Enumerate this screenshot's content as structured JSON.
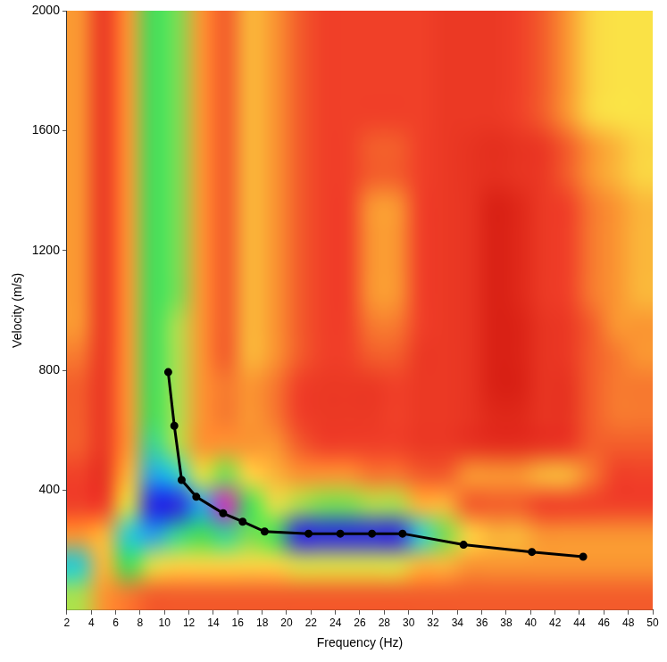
{
  "chart_data": {
    "type": "heatmap",
    "x_label": "Frequency (Hz)",
    "y_label": "Velocity (m/s)",
    "xlim": [
      2,
      50
    ],
    "xticks": [
      2,
      4,
      6,
      8,
      10,
      12,
      14,
      16,
      18,
      20,
      22,
      24,
      26,
      28,
      30,
      32,
      34,
      36,
      38,
      40,
      42,
      44,
      46,
      48,
      50
    ],
    "ylim": [
      0,
      2000
    ],
    "yticks": [
      400,
      800,
      1200,
      1600,
      2000
    ],
    "grid": false,
    "heatmap": {
      "x_edges": [
        2,
        4,
        6,
        8,
        10,
        12,
        14,
        16,
        18,
        20,
        22,
        24,
        26,
        28,
        30,
        32,
        34,
        36,
        38,
        40,
        42,
        44,
        46,
        48,
        50
      ],
      "y_edges": [
        0,
        100,
        200,
        300,
        400,
        500,
        600,
        700,
        800,
        900,
        1000,
        1100,
        1200,
        1300,
        1400,
        1500,
        1600,
        1700,
        1800,
        1900,
        2000
      ],
      "zlim": [
        0,
        1
      ],
      "cells": [
        [
          0.5,
          0.3,
          0.25,
          0.2,
          0.2,
          0.2,
          0.2,
          0.2,
          0.2,
          0.2,
          0.2,
          0.2,
          0.2,
          0.2,
          0.2,
          0.2,
          0.2,
          0.2,
          0.2,
          0.2,
          0.2,
          0.2,
          0.2,
          0.2
        ],
        [
          0.7,
          0.35,
          0.6,
          0.45,
          0.4,
          0.4,
          0.4,
          0.4,
          0.4,
          0.45,
          0.45,
          0.45,
          0.45,
          0.45,
          0.35,
          0.35,
          0.3,
          0.3,
          0.3,
          0.3,
          0.3,
          0.3,
          0.3,
          0.3
        ],
        [
          0.3,
          0.35,
          0.7,
          0.75,
          0.65,
          0.6,
          0.65,
          0.55,
          0.6,
          0.85,
          0.85,
          0.85,
          0.85,
          0.85,
          0.7,
          0.55,
          0.4,
          0.35,
          0.35,
          0.3,
          0.3,
          0.3,
          0.3,
          0.3
        ],
        [
          0.15,
          0.15,
          0.45,
          0.85,
          0.85,
          0.75,
          1.0,
          0.6,
          0.45,
          0.5,
          0.55,
          0.55,
          0.5,
          0.5,
          0.35,
          0.35,
          0.2,
          0.2,
          0.2,
          0.15,
          0.15,
          0.15,
          0.15,
          0.15
        ],
        [
          0.15,
          0.1,
          0.35,
          0.75,
          0.7,
          0.45,
          0.55,
          0.4,
          0.35,
          0.3,
          0.3,
          0.3,
          0.25,
          0.25,
          0.2,
          0.2,
          0.3,
          0.3,
          0.3,
          0.35,
          0.35,
          0.25,
          0.15,
          0.15
        ],
        [
          0.2,
          0.12,
          0.3,
          0.65,
          0.5,
          0.3,
          0.3,
          0.3,
          0.3,
          0.2,
          0.15,
          0.15,
          0.15,
          0.15,
          0.12,
          0.12,
          0.1,
          0.08,
          0.08,
          0.1,
          0.12,
          0.2,
          0.2,
          0.2
        ],
        [
          0.2,
          0.12,
          0.3,
          0.6,
          0.5,
          0.3,
          0.25,
          0.3,
          0.25,
          0.15,
          0.12,
          0.12,
          0.12,
          0.15,
          0.12,
          0.12,
          0.1,
          0.05,
          0.05,
          0.1,
          0.1,
          0.2,
          0.25,
          0.25
        ],
        [
          0.2,
          0.12,
          0.3,
          0.6,
          0.5,
          0.3,
          0.25,
          0.3,
          0.25,
          0.15,
          0.12,
          0.12,
          0.12,
          0.15,
          0.12,
          0.12,
          0.1,
          0.02,
          0.02,
          0.1,
          0.1,
          0.2,
          0.25,
          0.25
        ],
        [
          0.25,
          0.12,
          0.3,
          0.6,
          0.5,
          0.3,
          0.2,
          0.35,
          0.3,
          0.2,
          0.15,
          0.15,
          0.2,
          0.2,
          0.12,
          0.12,
          0.1,
          0.02,
          0.03,
          0.1,
          0.12,
          0.2,
          0.25,
          0.3
        ],
        [
          0.3,
          0.12,
          0.3,
          0.6,
          0.5,
          0.3,
          0.2,
          0.35,
          0.3,
          0.2,
          0.15,
          0.15,
          0.25,
          0.25,
          0.15,
          0.12,
          0.1,
          0.02,
          0.03,
          0.1,
          0.12,
          0.2,
          0.3,
          0.3
        ],
        [
          0.3,
          0.12,
          0.3,
          0.6,
          0.55,
          0.3,
          0.2,
          0.35,
          0.3,
          0.2,
          0.15,
          0.15,
          0.3,
          0.3,
          0.15,
          0.12,
          0.1,
          0.02,
          0.05,
          0.12,
          0.15,
          0.25,
          0.3,
          0.35
        ],
        [
          0.3,
          0.12,
          0.3,
          0.6,
          0.55,
          0.3,
          0.2,
          0.35,
          0.3,
          0.2,
          0.15,
          0.15,
          0.3,
          0.3,
          0.15,
          0.12,
          0.1,
          0.02,
          0.05,
          0.12,
          0.15,
          0.25,
          0.3,
          0.35
        ],
        [
          0.3,
          0.12,
          0.3,
          0.6,
          0.55,
          0.3,
          0.2,
          0.35,
          0.3,
          0.2,
          0.15,
          0.15,
          0.3,
          0.3,
          0.15,
          0.12,
          0.1,
          0.02,
          0.05,
          0.12,
          0.15,
          0.25,
          0.3,
          0.35
        ],
        [
          0.3,
          0.12,
          0.3,
          0.6,
          0.55,
          0.3,
          0.2,
          0.35,
          0.3,
          0.2,
          0.15,
          0.15,
          0.3,
          0.3,
          0.15,
          0.12,
          0.1,
          0.02,
          0.05,
          0.12,
          0.15,
          0.25,
          0.3,
          0.35
        ],
        [
          0.3,
          0.12,
          0.3,
          0.6,
          0.55,
          0.3,
          0.2,
          0.35,
          0.3,
          0.2,
          0.15,
          0.15,
          0.2,
          0.2,
          0.15,
          0.12,
          0.1,
          0.08,
          0.1,
          0.12,
          0.2,
          0.3,
          0.35,
          0.4
        ],
        [
          0.3,
          0.12,
          0.3,
          0.6,
          0.55,
          0.3,
          0.2,
          0.35,
          0.3,
          0.2,
          0.15,
          0.15,
          0.2,
          0.2,
          0.15,
          0.12,
          0.1,
          0.08,
          0.1,
          0.12,
          0.2,
          0.3,
          0.35,
          0.4
        ],
        [
          0.3,
          0.12,
          0.3,
          0.6,
          0.55,
          0.3,
          0.2,
          0.35,
          0.3,
          0.2,
          0.15,
          0.15,
          0.15,
          0.15,
          0.15,
          0.12,
          0.12,
          0.12,
          0.15,
          0.2,
          0.3,
          0.4,
          0.42,
          0.42
        ],
        [
          0.3,
          0.12,
          0.3,
          0.6,
          0.55,
          0.3,
          0.2,
          0.35,
          0.3,
          0.2,
          0.15,
          0.15,
          0.15,
          0.15,
          0.15,
          0.12,
          0.12,
          0.12,
          0.15,
          0.2,
          0.3,
          0.4,
          0.42,
          0.42
        ],
        [
          0.3,
          0.12,
          0.3,
          0.6,
          0.55,
          0.3,
          0.2,
          0.35,
          0.3,
          0.2,
          0.15,
          0.15,
          0.15,
          0.15,
          0.15,
          0.12,
          0.12,
          0.12,
          0.15,
          0.2,
          0.3,
          0.4,
          0.42,
          0.42
        ],
        [
          0.3,
          0.12,
          0.3,
          0.6,
          0.55,
          0.3,
          0.2,
          0.35,
          0.3,
          0.2,
          0.15,
          0.15,
          0.15,
          0.15,
          0.15,
          0.12,
          0.12,
          0.12,
          0.15,
          0.2,
          0.3,
          0.4,
          0.42,
          0.42
        ]
      ]
    },
    "series": [
      {
        "type": "line",
        "color": "#000000",
        "marker": "circle",
        "x": [
          10.3,
          10.8,
          11.4,
          12.6,
          14.8,
          16.4,
          18.2,
          21.8,
          24.4,
          27.0,
          29.5,
          34.5,
          40.1,
          44.3
        ],
        "values": [
          794,
          615,
          434,
          378,
          323,
          295,
          262,
          255,
          255,
          255,
          255,
          218,
          194,
          178
        ]
      }
    ]
  }
}
